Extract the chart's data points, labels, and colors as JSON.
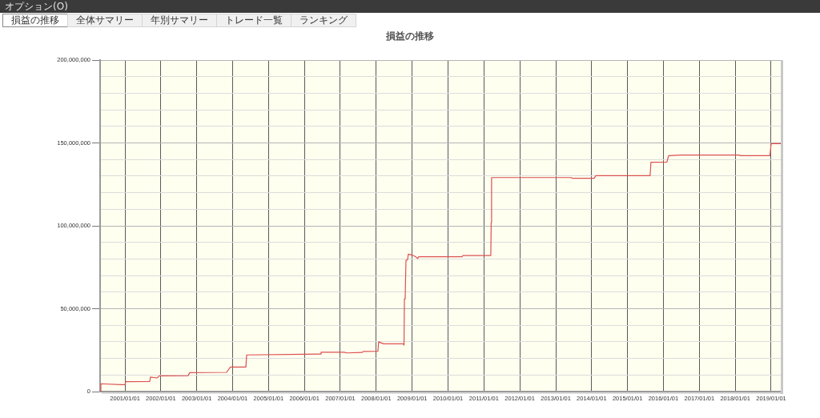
{
  "chart_data": {
    "type": "line",
    "title": "損益の推移",
    "annotations": [
      "オプション(O)",
      "損益の推移",
      "全体サマリー",
      "年別サマリー",
      "トレード一覧",
      "ランキング"
    ],
    "x": [
      "2000-04-23",
      "2000-05-01",
      "2000-11-27",
      "2001-01-01",
      "2001-01-09",
      "2001-09-10",
      "2001-09-18",
      "2001-11-22",
      "2001-12-17",
      "2002-10-05",
      "2002-10-22",
      "2003-10-31",
      "2003-12-10",
      "2004-05-15",
      "2004-05-23",
      "2005-12-26",
      "2006-06-12",
      "2006-06-19",
      "2007-02-11",
      "2007-03-07",
      "2007-08-08",
      "2007-08-24",
      "2008-01-18",
      "2008-01-26",
      "2008-03-16",
      "2008-10-02",
      "2008-10-10",
      "2008-10-14",
      "2008-10-22",
      "2008-10-30",
      "2008-11-15",
      "2008-11-23",
      "2008-12-26",
      "2009-01-20",
      "2009-02-13",
      "2009-02-25",
      "2009-03-09",
      "2010-05-23",
      "2010-06-01",
      "2011-03-12",
      "2011-03-16",
      "2011-03-20",
      "2013-06-04",
      "2013-06-20",
      "2014-01-27",
      "2014-02-12",
      "2015-08-19",
      "2015-08-27",
      "2016-02-06",
      "2016-02-23",
      "2016-07-02",
      "2018-02-10",
      "2018-02-22",
      "2018-12-20",
      "2019-01-01",
      "2019-04-09"
    ],
    "values": [
      0,
      4700000,
      4200000,
      4200000,
      6000000,
      6100000,
      8800000,
      8200000,
      9500000,
      9600000,
      11400000,
      11600000,
      14800000,
      14800000,
      22100000,
      22500000,
      22600000,
      23700000,
      23700000,
      23300000,
      23600000,
      24200000,
      24300000,
      30000000,
      28800000,
      28800000,
      28000000,
      55900000,
      57000000,
      79200000,
      79500000,
      82900000,
      82400000,
      81900000,
      81000000,
      80300000,
      81300000,
      81300000,
      82100000,
      82100000,
      102000000,
      129100000,
      129100000,
      128700000,
      128700000,
      130300000,
      130300000,
      138300000,
      138500000,
      142300000,
      142700000,
      142700000,
      142300000,
      142300000,
      149600000,
      149600000
    ],
    "color": "#dc5050",
    "xlim": [
      "2000-04-23",
      "2019-04-09"
    ],
    "xticks": [
      {
        "value": "2001-01-01",
        "label": "2001/01/01"
      },
      {
        "value": "2002-01-01",
        "label": "2002/01/01"
      },
      {
        "value": "2003-01-01",
        "label": "2003/01/01"
      },
      {
        "value": "2004-01-01",
        "label": "2004/01/01"
      },
      {
        "value": "2005-01-01",
        "label": "2005/01/01"
      },
      {
        "value": "2006-01-01",
        "label": "2006/01/01"
      },
      {
        "value": "2007-01-01",
        "label": "2007/01/01"
      },
      {
        "value": "2008-01-01",
        "label": "2008/01/01"
      },
      {
        "value": "2009-01-01",
        "label": "2009/01/01"
      },
      {
        "value": "2010-01-01",
        "label": "2010/01/01"
      },
      {
        "value": "2011-01-01",
        "label": "2011/01/01"
      },
      {
        "value": "2012-01-01",
        "label": "2012/01/01"
      },
      {
        "value": "2013-01-01",
        "label": "2013/01/01"
      },
      {
        "value": "2014-01-01",
        "label": "2014/01/01"
      },
      {
        "value": "2015-01-01",
        "label": "2015/01/01"
      },
      {
        "value": "2016-01-01",
        "label": "2016/01/01"
      },
      {
        "value": "2017-01-01",
        "label": "2017/01/01"
      },
      {
        "value": "2018-01-01",
        "label": "2018/01/01"
      },
      {
        "value": "2019-01-01",
        "label": "2019/01/01"
      }
    ],
    "ylim": [
      0,
      200000000
    ],
    "yticks": [
      0,
      {
        "value": 10000000,
        "label": null
      },
      {
        "value": 20000000,
        "label": null
      },
      {
        "value": 30000000,
        "label": null
      },
      {
        "value": 40000000,
        "label": null
      },
      {
        "value": 50000000,
        "label": "50,000,000"
      },
      {
        "value": 60000000,
        "label": null
      },
      {
        "value": 70000000,
        "label": null
      },
      {
        "value": 80000000,
        "label": null
      },
      {
        "value": 90000000,
        "label": null
      },
      {
        "value": 100000000,
        "label": "100,000,000"
      },
      {
        "value": 110000000,
        "label": null
      },
      {
        "value": 120000000,
        "label": null
      },
      {
        "value": 130000000,
        "label": null
      },
      {
        "value": 140000000,
        "label": null
      },
      {
        "value": 150000000,
        "label": "150,000,000"
      },
      {
        "value": 160000000,
        "label": null
      },
      {
        "value": 170000000,
        "label": null
      },
      {
        "value": 180000000,
        "label": null
      },
      {
        "value": 190000000,
        "label": null
      },
      {
        "value": 200000000,
        "label": "200,000,000"
      }
    ],
    "grid": true,
    "marker": "none"
  }
}
